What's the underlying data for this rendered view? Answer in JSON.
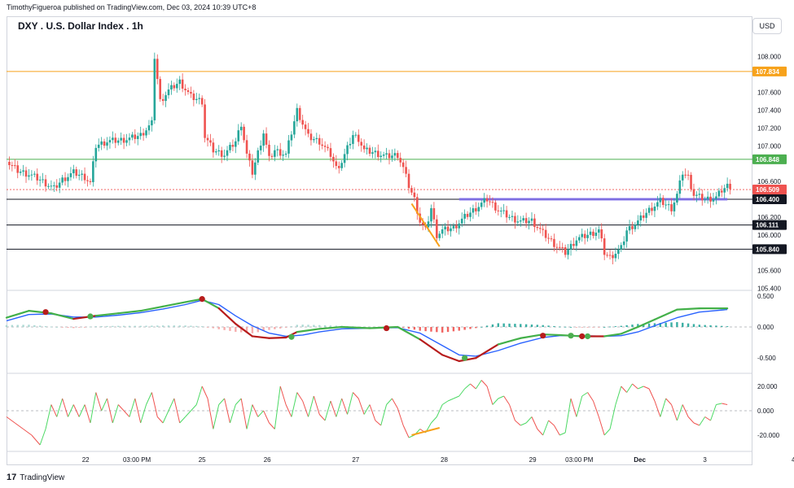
{
  "header": {
    "published_text": "TimothyFigueroa published on TradingView.com, Dec 03, 2024 10:39 UTC+8",
    "symbol_title": "DXY . U.S. Dollar Index . 1h",
    "currency_button": "USD"
  },
  "footer": {
    "logo_text": "TradingView",
    "logo_mark": "17"
  },
  "colors": {
    "up": "#26a69a",
    "down": "#ef5350",
    "orange_level": "#f7a21b",
    "green_level": "#4caf50",
    "black_level": "#131722",
    "purple_zone": "#7b68ee",
    "macd_green": "#43b049",
    "macd_red": "#b71c1c",
    "signal_blue": "#2962ff"
  },
  "chart_data": [
    {
      "type": "candlestick",
      "title": "DXY . U.S. Dollar Index . 1h",
      "currency": "USD",
      "ylim": [
        105.35,
        108.18
      ],
      "yticks": [
        "108.000",
        "107.600",
        "107.400",
        "107.200",
        "107.000",
        "106.600",
        "106.200",
        "106.000",
        "105.600",
        "105.400"
      ],
      "xticks": [
        "22",
        "03:00 PM",
        "25",
        "26",
        "27",
        "28",
        "29",
        "03:00 PM",
        "Dec",
        "3",
        "4"
      ],
      "close_path": [
        [
          0,
          106.82
        ],
        [
          4,
          106.72
        ],
        [
          8,
          106.68
        ],
        [
          12,
          106.62
        ],
        [
          14,
          106.58
        ],
        [
          17,
          106.52
        ],
        [
          20,
          106.62
        ],
        [
          24,
          106.7
        ],
        [
          28,
          106.65
        ],
        [
          30,
          106.58
        ],
        [
          32,
          107.0
        ],
        [
          36,
          107.05
        ],
        [
          40,
          107.06
        ],
        [
          44,
          107.08
        ],
        [
          48,
          107.12
        ],
        [
          52,
          107.25
        ],
        [
          53,
          108.0
        ],
        [
          55,
          107.5
        ],
        [
          58,
          107.62
        ],
        [
          62,
          107.72
        ],
        [
          66,
          107.55
        ],
        [
          70,
          107.5
        ],
        [
          71,
          107.1
        ],
        [
          74,
          106.95
        ],
        [
          78,
          106.9
        ],
        [
          82,
          107.05
        ],
        [
          84,
          107.25
        ],
        [
          86,
          106.9
        ],
        [
          88,
          106.7
        ],
        [
          92,
          107.15
        ],
        [
          94,
          106.85
        ],
        [
          96,
          106.95
        ],
        [
          100,
          106.9
        ],
        [
          104,
          107.4
        ],
        [
          108,
          107.1
        ],
        [
          112,
          107.05
        ],
        [
          116,
          106.9
        ],
        [
          118,
          106.75
        ],
        [
          120,
          106.82
        ],
        [
          124,
          107.12
        ],
        [
          126,
          107.08
        ],
        [
          128,
          106.95
        ],
        [
          132,
          106.92
        ],
        [
          136,
          106.88
        ],
        [
          140,
          106.9
        ],
        [
          142,
          106.75
        ],
        [
          144,
          106.55
        ],
        [
          146,
          106.4
        ],
        [
          148,
          106.15
        ],
        [
          150,
          106.05
        ],
        [
          152,
          106.3
        ],
        [
          154,
          106.0
        ],
        [
          156,
          106.05
        ],
        [
          160,
          106.08
        ],
        [
          164,
          106.2
        ],
        [
          168,
          106.3
        ],
        [
          172,
          106.4
        ],
        [
          176,
          106.28
        ],
        [
          180,
          106.2
        ],
        [
          184,
          106.15
        ],
        [
          188,
          106.16
        ],
        [
          192,
          106.02
        ],
        [
          196,
          105.9
        ],
        [
          200,
          105.8
        ],
        [
          204,
          105.95
        ],
        [
          208,
          106.0
        ],
        [
          212,
          106.05
        ],
        [
          214,
          105.8
        ],
        [
          216,
          105.75
        ],
        [
          220,
          105.85
        ],
        [
          222,
          106.05
        ],
        [
          226,
          106.15
        ],
        [
          230,
          106.28
        ],
        [
          234,
          106.38
        ],
        [
          238,
          106.3
        ],
        [
          240,
          106.45
        ],
        [
          242,
          106.7
        ],
        [
          244,
          106.65
        ],
        [
          246,
          106.45
        ],
        [
          250,
          106.4
        ],
        [
          254,
          106.42
        ],
        [
          256,
          106.5
        ],
        [
          258,
          106.55
        ]
      ],
      "levels": [
        {
          "value": 107.834,
          "label": "107.834",
          "color": "orange"
        },
        {
          "value": 106.848,
          "label": "106.848",
          "color": "green"
        },
        {
          "value": 106.509,
          "label": "106.509",
          "color": "current"
        },
        {
          "value": 106.4,
          "label": "106.400",
          "color": "black"
        },
        {
          "value": 106.111,
          "label": "106.111",
          "color": "black"
        },
        {
          "value": 105.84,
          "label": "105.840",
          "color": "black"
        }
      ],
      "zone": {
        "value": 106.4,
        "from": 162,
        "to": 258
      },
      "trendline": [
        [
          145,
          106.35
        ],
        [
          155,
          105.87
        ]
      ]
    },
    {
      "type": "line",
      "indicator": "MACD",
      "ylim": [
        -0.72,
        0.55
      ],
      "yticks": [
        "0.500",
        "0.000",
        "-0.500"
      ],
      "macd": [
        [
          0,
          0.15
        ],
        [
          8,
          0.26
        ],
        [
          16,
          0.22
        ],
        [
          24,
          0.13
        ],
        [
          32,
          0.18
        ],
        [
          40,
          0.22
        ],
        [
          48,
          0.26
        ],
        [
          56,
          0.33
        ],
        [
          64,
          0.4
        ],
        [
          70,
          0.45
        ],
        [
          76,
          0.3
        ],
        [
          82,
          0.05
        ],
        [
          88,
          -0.15
        ],
        [
          94,
          -0.18
        ],
        [
          100,
          -0.17
        ],
        [
          104,
          -0.08
        ],
        [
          112,
          -0.03
        ],
        [
          120,
          0.0
        ],
        [
          130,
          -0.02
        ],
        [
          140,
          0.0
        ],
        [
          148,
          -0.2
        ],
        [
          156,
          -0.45
        ],
        [
          162,
          -0.55
        ],
        [
          168,
          -0.5
        ],
        [
          176,
          -0.28
        ],
        [
          184,
          -0.18
        ],
        [
          192,
          -0.12
        ],
        [
          198,
          -0.13
        ],
        [
          206,
          -0.15
        ],
        [
          214,
          -0.15
        ],
        [
          220,
          -0.11
        ],
        [
          226,
          0.0
        ],
        [
          232,
          0.12
        ],
        [
          240,
          0.28
        ],
        [
          248,
          0.3
        ],
        [
          258,
          0.3
        ]
      ],
      "signal": [
        [
          0,
          0.1
        ],
        [
          8,
          0.2
        ],
        [
          16,
          0.21
        ],
        [
          24,
          0.16
        ],
        [
          32,
          0.16
        ],
        [
          40,
          0.19
        ],
        [
          48,
          0.23
        ],
        [
          56,
          0.29
        ],
        [
          64,
          0.36
        ],
        [
          70,
          0.43
        ],
        [
          76,
          0.36
        ],
        [
          82,
          0.18
        ],
        [
          88,
          0.02
        ],
        [
          94,
          -0.1
        ],
        [
          100,
          -0.15
        ],
        [
          106,
          -0.13
        ],
        [
          112,
          -0.08
        ],
        [
          120,
          -0.03
        ],
        [
          130,
          -0.02
        ],
        [
          140,
          -0.01
        ],
        [
          148,
          -0.1
        ],
        [
          156,
          -0.3
        ],
        [
          162,
          -0.45
        ],
        [
          168,
          -0.47
        ],
        [
          176,
          -0.38
        ],
        [
          184,
          -0.26
        ],
        [
          192,
          -0.17
        ],
        [
          198,
          -0.14
        ],
        [
          206,
          -0.14
        ],
        [
          214,
          -0.15
        ],
        [
          220,
          -0.14
        ],
        [
          226,
          -0.08
        ],
        [
          232,
          0.02
        ],
        [
          240,
          0.15
        ],
        [
          248,
          0.24
        ],
        [
          258,
          0.28
        ]
      ],
      "histogram_up": [
        [
          0,
          0.05
        ],
        [
          20,
          0.04
        ],
        [
          40,
          0.03
        ],
        [
          56,
          0.04
        ],
        [
          64,
          0.04
        ],
        [
          104,
          0.05
        ],
        [
          112,
          0.05
        ],
        [
          120,
          0.03
        ],
        [
          172,
          0.09
        ],
        [
          176,
          0.1
        ],
        [
          184,
          0.08
        ],
        [
          190,
          0.05
        ],
        [
          226,
          0.08
        ],
        [
          232,
          0.1
        ],
        [
          240,
          0.12
        ],
        [
          248,
          0.06
        ],
        [
          258,
          0.02
        ]
      ],
      "histogram_down": [
        [
          10,
          -0.03
        ],
        [
          16,
          -0.04
        ],
        [
          72,
          -0.04
        ],
        [
          78,
          -0.07
        ],
        [
          82,
          -0.12
        ],
        [
          86,
          -0.15
        ],
        [
          90,
          -0.14
        ],
        [
          96,
          -0.08
        ],
        [
          130,
          -0.02
        ],
        [
          140,
          -0.03
        ],
        [
          144,
          -0.08
        ],
        [
          150,
          -0.15
        ],
        [
          156,
          -0.15
        ],
        [
          162,
          -0.1
        ],
        [
          166,
          -0.04
        ],
        [
          200,
          -0.02
        ],
        [
          210,
          -0.02
        ]
      ],
      "cross_dots": [
        {
          "x": 14,
          "y": 0.24,
          "dir": "down"
        },
        {
          "x": 30,
          "y": 0.17,
          "dir": "up"
        },
        {
          "x": 70,
          "y": 0.45,
          "dir": "down"
        },
        {
          "x": 102,
          "y": -0.16,
          "dir": "up"
        },
        {
          "x": 136,
          "y": -0.02,
          "dir": "down"
        },
        {
          "x": 164,
          "y": -0.5,
          "dir": "up"
        },
        {
          "x": 192,
          "y": -0.14,
          "dir": "down"
        },
        {
          "x": 202,
          "y": -0.14,
          "dir": "up"
        },
        {
          "x": 206,
          "y": -0.15,
          "dir": "down"
        },
        {
          "x": 208,
          "y": -0.15,
          "dir": "up"
        }
      ]
    },
    {
      "type": "line",
      "indicator": "Oscillator",
      "ylim": [
        -32,
        30
      ],
      "yticks": [
        "20.000",
        "0.000",
        "-20.000"
      ],
      "values": [
        [
          0,
          -5
        ],
        [
          3,
          -10
        ],
        [
          6,
          -15
        ],
        [
          9,
          -20
        ],
        [
          12,
          -28
        ],
        [
          14,
          -15
        ],
        [
          16,
          5
        ],
        [
          18,
          -5
        ],
        [
          20,
          10
        ],
        [
          22,
          -5
        ],
        [
          24,
          5
        ],
        [
          26,
          -5
        ],
        [
          28,
          5
        ],
        [
          30,
          -10
        ],
        [
          32,
          15
        ],
        [
          34,
          0
        ],
        [
          36,
          10
        ],
        [
          38,
          -10
        ],
        [
          40,
          5
        ],
        [
          42,
          0
        ],
        [
          44,
          -5
        ],
        [
          46,
          10
        ],
        [
          48,
          -10
        ],
        [
          50,
          5
        ],
        [
          52,
          15
        ],
        [
          54,
          -5
        ],
        [
          56,
          -10
        ],
        [
          58,
          0
        ],
        [
          60,
          10
        ],
        [
          62,
          -10
        ],
        [
          64,
          -5
        ],
        [
          66,
          0
        ],
        [
          68,
          5
        ],
        [
          70,
          20
        ],
        [
          72,
          10
        ],
        [
          74,
          -15
        ],
        [
          76,
          5
        ],
        [
          78,
          10
        ],
        [
          80,
          -10
        ],
        [
          82,
          5
        ],
        [
          84,
          10
        ],
        [
          86,
          -15
        ],
        [
          88,
          5
        ],
        [
          90,
          -5
        ],
        [
          92,
          0
        ],
        [
          94,
          -10
        ],
        [
          96,
          -15
        ],
        [
          98,
          20
        ],
        [
          100,
          5
        ],
        [
          102,
          -5
        ],
        [
          104,
          15
        ],
        [
          106,
          8
        ],
        [
          108,
          -5
        ],
        [
          110,
          12
        ],
        [
          112,
          -3
        ],
        [
          114,
          -8
        ],
        [
          116,
          8
        ],
        [
          118,
          -5
        ],
        [
          120,
          10
        ],
        [
          122,
          -3
        ],
        [
          124,
          15
        ],
        [
          126,
          10
        ],
        [
          128,
          -3
        ],
        [
          130,
          5
        ],
        [
          132,
          -8
        ],
        [
          134,
          -12
        ],
        [
          136,
          5
        ],
        [
          138,
          10
        ],
        [
          140,
          2
        ],
        [
          142,
          -12
        ],
        [
          144,
          -22
        ],
        [
          146,
          -20
        ],
        [
          148,
          -15
        ],
        [
          150,
          -18
        ],
        [
          152,
          -10
        ],
        [
          154,
          -5
        ],
        [
          156,
          5
        ],
        [
          158,
          8
        ],
        [
          160,
          10
        ],
        [
          162,
          12
        ],
        [
          164,
          18
        ],
        [
          166,
          22
        ],
        [
          168,
          18
        ],
        [
          170,
          25
        ],
        [
          172,
          20
        ],
        [
          174,
          5
        ],
        [
          176,
          10
        ],
        [
          178,
          12
        ],
        [
          180,
          5
        ],
        [
          182,
          -8
        ],
        [
          184,
          -12
        ],
        [
          186,
          -10
        ],
        [
          188,
          -5
        ],
        [
          190,
          -15
        ],
        [
          192,
          -20
        ],
        [
          194,
          -8
        ],
        [
          196,
          -12
        ],
        [
          198,
          -20
        ],
        [
          200,
          -18
        ],
        [
          202,
          10
        ],
        [
          204,
          -5
        ],
        [
          206,
          12
        ],
        [
          208,
          15
        ],
        [
          210,
          8
        ],
        [
          212,
          -5
        ],
        [
          214,
          -20
        ],
        [
          216,
          -15
        ],
        [
          218,
          5
        ],
        [
          220,
          20
        ],
        [
          222,
          15
        ],
        [
          224,
          22
        ],
        [
          226,
          18
        ],
        [
          228,
          20
        ],
        [
          230,
          18
        ],
        [
          232,
          8
        ],
        [
          234,
          -5
        ],
        [
          236,
          10
        ],
        [
          238,
          5
        ],
        [
          240,
          -8
        ],
        [
          242,
          5
        ],
        [
          244,
          -5
        ],
        [
          246,
          -10
        ],
        [
          248,
          -12
        ],
        [
          250,
          -5
        ],
        [
          252,
          -8
        ],
        [
          254,
          5
        ],
        [
          256,
          6
        ],
        [
          258,
          5
        ]
      ],
      "trendline": [
        [
          145,
          -20
        ],
        [
          155,
          -14
        ]
      ]
    }
  ]
}
